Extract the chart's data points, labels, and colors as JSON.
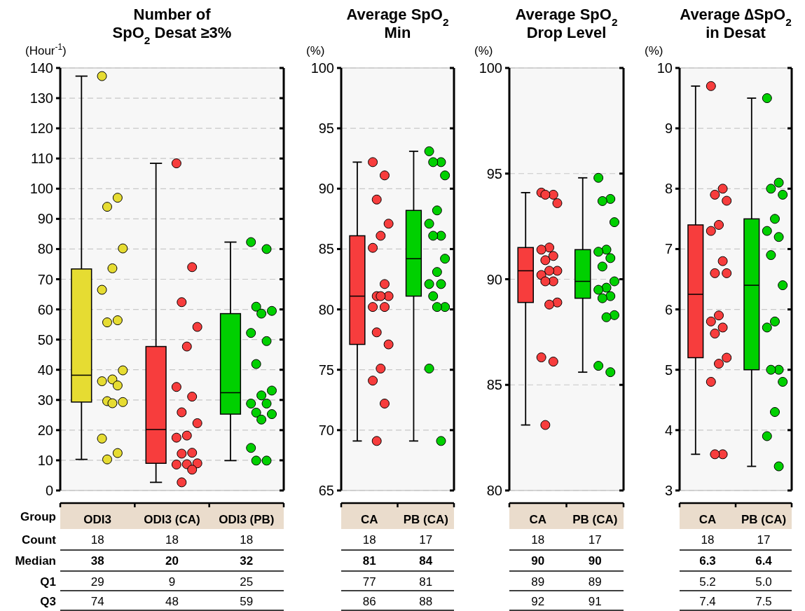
{
  "chart_data": [
    {
      "type": "box",
      "title": "Number of\nSpO$_{2}$ Desat ≥3%",
      "ylabel": "(Hour$^{-1}$)",
      "categories": [
        "ODI3",
        "ODI3 (CA)",
        "ODI3 (PB)"
      ],
      "colors": [
        "#e6dc32",
        "#f73d3d",
        "#00d000"
      ],
      "boxes": [
        {
          "low": 10.3,
          "q1": 29.3,
          "median": 38.2,
          "q3": 73.4,
          "high": 137.3
        },
        {
          "low": 2.7,
          "q1": 9,
          "median": 20.2,
          "q3": 47.7,
          "high": 108.4
        },
        {
          "low": 9.9,
          "q1": 25.3,
          "median": 32.4,
          "q3": 58.6,
          "high": 82.3
        }
      ],
      "series": [
        {
          "type": "scatter",
          "color": "#e6dc32",
          "x": [
            "ODI3",
            "ODI3",
            "ODI3",
            "ODI3",
            "ODI3",
            "ODI3",
            "ODI3",
            "ODI3",
            "ODI3",
            "ODI3",
            "ODI3",
            "ODI3",
            "ODI3",
            "ODI3",
            "ODI3",
            "ODI3",
            "ODI3",
            "ODI3"
          ],
          "values": [
            137.3,
            97,
            94,
            80.2,
            73.6,
            66.5,
            56.4,
            55.7,
            39.8,
            36.8,
            36.2,
            34.8,
            29.6,
            29.3,
            28.9,
            17.2,
            12.4,
            10.3
          ]
        },
        {
          "type": "scatter",
          "color": "#f73d3d",
          "x": [
            "ODI3 (CA)",
            "ODI3 (CA)",
            "ODI3 (CA)",
            "ODI3 (CA)",
            "ODI3 (CA)",
            "ODI3 (CA)",
            "ODI3 (CA)",
            "ODI3 (CA)",
            "ODI3 (CA)",
            "ODI3 (CA)",
            "ODI3 (CA)",
            "ODI3 (CA)",
            "ODI3 (CA)",
            "ODI3 (CA)",
            "ODI3 (CA)",
            "ODI3 (CA)",
            "ODI3 (CA)",
            "ODI3 (CA)"
          ],
          "values": [
            108.4,
            74,
            62.4,
            54.2,
            47.7,
            34.3,
            31.1,
            25.9,
            22.3,
            18.2,
            17.5,
            12.5,
            12.2,
            9,
            8.7,
            8.6,
            6.9,
            2.7
          ]
        },
        {
          "type": "scatter",
          "color": "#00d000",
          "x": [
            "ODI3 (PB)",
            "ODI3 (PB)",
            "ODI3 (PB)",
            "ODI3 (PB)",
            "ODI3 (PB)",
            "ODI3 (PB)",
            "ODI3 (PB)",
            "ODI3 (PB)",
            "ODI3 (PB)",
            "ODI3 (PB)",
            "ODI3 (PB)",
            "ODI3 (PB)",
            "ODI3 (PB)",
            "ODI3 (PB)",
            "ODI3 (PB)",
            "ODI3 (PB)",
            "ODI3 (PB)",
            "ODI3 (PB)"
          ],
          "values": [
            82.3,
            80,
            60.9,
            59.5,
            58.6,
            52.2,
            49.5,
            41.9,
            33.1,
            31.5,
            28.8,
            28.8,
            25.8,
            25.3,
            23.5,
            14.1,
            9.9,
            9.9
          ]
        }
      ],
      "ylim": [
        0,
        140
      ],
      "yticks": [
        0,
        10,
        20,
        30,
        40,
        50,
        60,
        70,
        80,
        90,
        100,
        110,
        120,
        130,
        140
      ],
      "grid": "y",
      "marker": "circle",
      "annotations": [
        "Group",
        "Count",
        "Median",
        "Q1",
        "Q3",
        "18",
        "18",
        "18",
        "38",
        "20",
        "32",
        "29",
        "9",
        "25",
        "74",
        "48",
        "59"
      ]
    },
    {
      "type": "box",
      "title": "Average SpO$_{2}$\nMin",
      "ylabel": "(%)",
      "categories": [
        "CA",
        "PB (CA)"
      ],
      "colors": [
        "#f73d3d",
        "#00d000"
      ],
      "boxes": [
        {
          "low": 69.1,
          "q1": 77.1,
          "median": 81.1,
          "q3": 86.1,
          "high": 92.2
        },
        {
          "low": 69.1,
          "q1": 81.1,
          "median": 84.2,
          "q3": 88.2,
          "high": 93.1
        }
      ],
      "series": [
        {
          "type": "scatter",
          "color": "#f73d3d",
          "x": [
            "CA",
            "CA",
            "CA",
            "CA",
            "CA",
            "CA",
            "CA",
            "CA",
            "CA",
            "CA",
            "CA",
            "CA",
            "CA",
            "CA",
            "CA",
            "CA",
            "CA",
            "CA"
          ],
          "values": [
            92.2,
            91.1,
            89.1,
            87.1,
            86.1,
            85.1,
            82.1,
            81.1,
            81.1,
            81.1,
            80.2,
            80.2,
            78.1,
            77.1,
            75.1,
            74.1,
            72.2,
            69.1
          ]
        },
        {
          "type": "scatter",
          "color": "#00d000",
          "x": [
            "PB (CA)",
            "PB (CA)",
            "PB (CA)",
            "PB (CA)",
            "PB (CA)",
            "PB (CA)",
            "PB (CA)",
            "PB (CA)",
            "PB (CA)",
            "PB (CA)",
            "PB (CA)",
            "PB (CA)",
            "PB (CA)",
            "PB (CA)",
            "PB (CA)",
            "PB (CA)",
            "PB (CA)"
          ],
          "values": [
            93.1,
            92.2,
            92.2,
            91.1,
            88.2,
            87.1,
            86.1,
            86.1,
            84.2,
            83.1,
            82.1,
            82.1,
            81.1,
            80.2,
            80.2,
            75.1,
            69.1
          ]
        }
      ],
      "ylim": [
        65,
        100
      ],
      "yticks": [
        65,
        70,
        75,
        80,
        85,
        90,
        95,
        100
      ],
      "grid": "y",
      "marker": "circle",
      "annotations": [
        "18",
        "17",
        "81",
        "84",
        "77",
        "81",
        "86",
        "88"
      ]
    },
    {
      "type": "box",
      "title": "Average SpO$_{2}$\nDrop Level",
      "ylabel": "(%)",
      "categories": [
        "CA",
        "PB (CA)"
      ],
      "colors": [
        "#f73d3d",
        "#00d000"
      ],
      "boxes": [
        {
          "low": 83.1,
          "q1": 88.9,
          "median": 90.4,
          "q3": 91.5,
          "high": 94.1
        },
        {
          "low": 85.6,
          "q1": 89.1,
          "median": 89.9,
          "q3": 91.4,
          "high": 94.8
        }
      ],
      "series": [
        {
          "type": "scatter",
          "color": "#f73d3d",
          "x": [
            "CA",
            "CA",
            "CA",
            "CA",
            "CA",
            "CA",
            "CA",
            "CA",
            "CA",
            "CA",
            "CA",
            "CA",
            "CA",
            "CA",
            "CA",
            "CA",
            "CA",
            "CA"
          ],
          "values": [
            94.1,
            94,
            94,
            93.6,
            91.5,
            91.4,
            91.1,
            90.9,
            90.4,
            90.4,
            90.2,
            89.9,
            89.9,
            88.9,
            88.8,
            86.3,
            86.1,
            83.1
          ]
        },
        {
          "type": "scatter",
          "color": "#00d000",
          "x": [
            "PB (CA)",
            "PB (CA)",
            "PB (CA)",
            "PB (CA)",
            "PB (CA)",
            "PB (CA)",
            "PB (CA)",
            "PB (CA)",
            "PB (CA)",
            "PB (CA)",
            "PB (CA)",
            "PB (CA)",
            "PB (CA)",
            "PB (CA)",
            "PB (CA)",
            "PB (CA)",
            "PB (CA)"
          ],
          "values": [
            94.8,
            93.8,
            93.7,
            92.7,
            91.4,
            91.3,
            91,
            90.6,
            89.9,
            89.6,
            89.5,
            89.2,
            89.1,
            88.3,
            88.2,
            85.9,
            85.6
          ]
        }
      ],
      "ylim": [
        80,
        100
      ],
      "yticks": [
        80,
        85,
        90,
        95,
        100
      ],
      "grid": "y",
      "marker": "circle",
      "annotations": [
        "18",
        "17",
        "90",
        "90",
        "89",
        "89",
        "92",
        "91"
      ]
    },
    {
      "type": "box",
      "title": "Average ∆SpO$_{2}$\nin Desat",
      "ylabel": "(%)",
      "categories": [
        "CA",
        "PB (CA)"
      ],
      "colors": [
        "#f73d3d",
        "#00d000"
      ],
      "boxes": [
        {
          "low": 3.6,
          "q1": 5.2,
          "median": 6.25,
          "q3": 7.4,
          "high": 9.7
        },
        {
          "low": 3.4,
          "q1": 5,
          "median": 6.4,
          "q3": 7.5,
          "high": 9.5
        }
      ],
      "series": [
        {
          "type": "scatter",
          "color": "#f73d3d",
          "x": [
            "CA",
            "CA",
            "CA",
            "CA",
            "CA",
            "CA",
            "CA",
            "CA",
            "CA",
            "CA",
            "CA",
            "CA",
            "CA",
            "CA",
            "CA",
            "CA",
            "CA",
            "CA"
          ],
          "values": [
            9.7,
            8,
            7.9,
            7.8,
            7.4,
            7.3,
            6.8,
            6.6,
            6.6,
            5.9,
            5.8,
            5.7,
            5.6,
            5.2,
            5.1,
            4.8,
            3.6,
            3.6
          ]
        },
        {
          "type": "scatter",
          "color": "#00d000",
          "x": [
            "PB (CA)",
            "PB (CA)",
            "PB (CA)",
            "PB (CA)",
            "PB (CA)",
            "PB (CA)",
            "PB (CA)",
            "PB (CA)",
            "PB (CA)",
            "PB (CA)",
            "PB (CA)",
            "PB (CA)",
            "PB (CA)",
            "PB (CA)",
            "PB (CA)",
            "PB (CA)",
            "PB (CA)"
          ],
          "values": [
            9.5,
            8.1,
            8,
            7.9,
            7.5,
            7.3,
            7.2,
            6.9,
            6.4,
            5.8,
            5.7,
            5,
            5,
            4.8,
            4.3,
            3.9,
            3.4
          ]
        }
      ],
      "ylim": [
        3,
        10
      ],
      "yticks": [
        3,
        4,
        5,
        6,
        7,
        8,
        9,
        10
      ],
      "grid": "y",
      "marker": "circle",
      "annotations": [
        "18",
        "17",
        "6.3",
        "6.4",
        "5.2",
        "5.0",
        "7.4",
        "7.5"
      ]
    }
  ]
}
